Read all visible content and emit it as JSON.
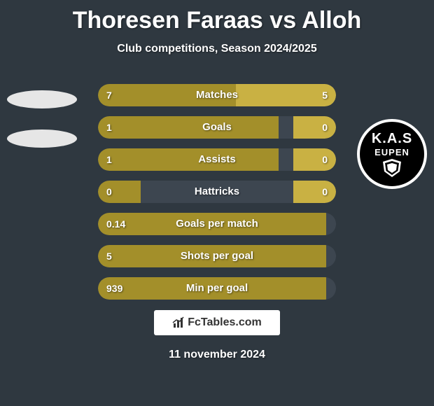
{
  "title": "Thoresen Faraas vs Alloh",
  "subtitle": "Club competitions, Season 2024/2025",
  "date": "11 november 2024",
  "footer_brand": "FcTables.com",
  "background_color": "#2f3840",
  "bar_track_color": "#3d4650",
  "left_bar_color": "#a38f2a",
  "right_bar_color": "#c9b143",
  "logo_right": {
    "line1": "K.A.S",
    "line2": "EUPEN"
  },
  "stats": [
    {
      "label": "Matches",
      "left_val": "7",
      "right_val": "5",
      "left_pct": 58,
      "right_pct": 42
    },
    {
      "label": "Goals",
      "left_val": "1",
      "right_val": "0",
      "left_pct": 76,
      "right_pct": 18
    },
    {
      "label": "Assists",
      "left_val": "1",
      "right_val": "0",
      "left_pct": 76,
      "right_pct": 18
    },
    {
      "label": "Hattricks",
      "left_val": "0",
      "right_val": "0",
      "left_pct": 18,
      "right_pct": 18
    },
    {
      "label": "Goals per match",
      "left_val": "0.14",
      "right_val": "",
      "left_pct": 96,
      "right_pct": 0
    },
    {
      "label": "Shots per goal",
      "left_val": "5",
      "right_val": "",
      "left_pct": 96,
      "right_pct": 0
    },
    {
      "label": "Min per goal",
      "left_val": "939",
      "right_val": "",
      "left_pct": 96,
      "right_pct": 0
    }
  ]
}
